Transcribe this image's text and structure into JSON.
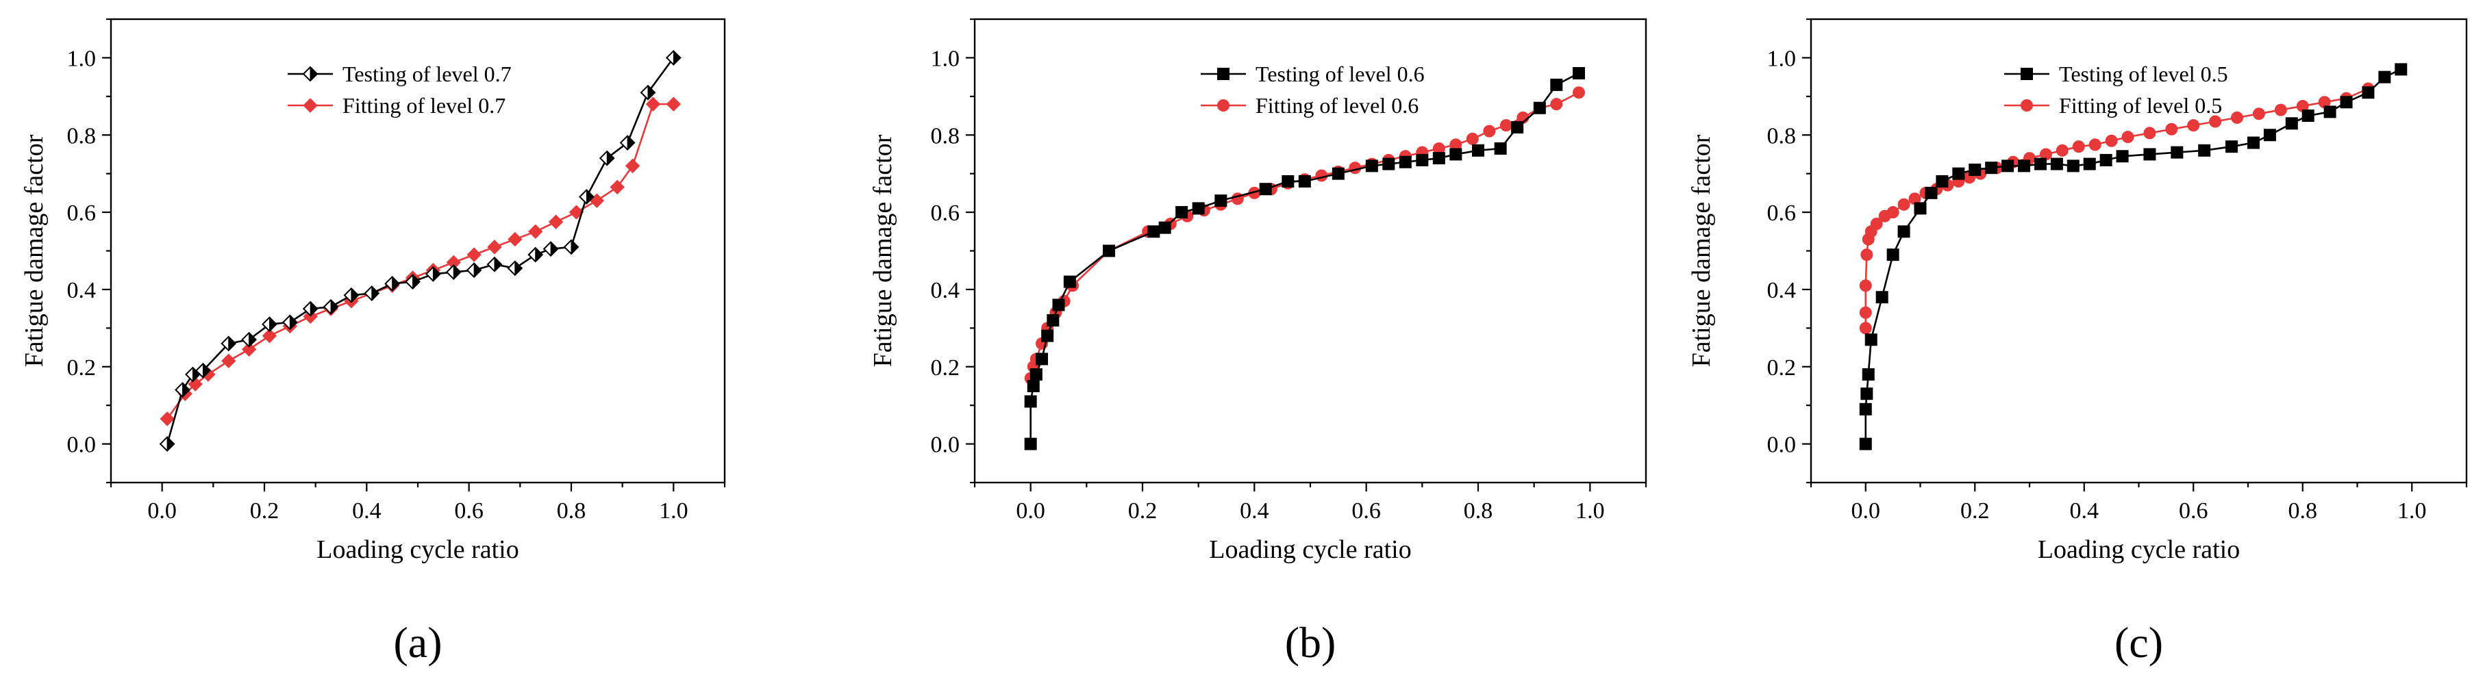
{
  "chart_data": [
    {
      "type": "line",
      "xlabel": "Loading cycle ratio",
      "ylabel": "Fatigue damage factor",
      "xlim": [
        -0.1,
        1.1
      ],
      "ylim": [
        -0.1,
        1.1
      ],
      "xticks": [
        "0.0",
        "0.2",
        "0.4",
        "0.6",
        "0.8",
        "1.0"
      ],
      "yticks": [
        "0.0",
        "0.2",
        "0.4",
        "0.6",
        "0.8",
        "1.0"
      ],
      "caption": "(a)",
      "legend_position": "top-center",
      "series": [
        {
          "name": "Testing of level 0.7",
          "color": "#000000",
          "marker": "half-diamond",
          "x": [
            0.01,
            0.04,
            0.06,
            0.08,
            0.13,
            0.17,
            0.21,
            0.25,
            0.29,
            0.33,
            0.37,
            0.41,
            0.45,
            0.49,
            0.53,
            0.57,
            0.61,
            0.65,
            0.69,
            0.73,
            0.76,
            0.8,
            0.83,
            0.87,
            0.91,
            0.95,
            1.0
          ],
          "y": [
            0.0,
            0.14,
            0.18,
            0.19,
            0.26,
            0.27,
            0.31,
            0.315,
            0.35,
            0.355,
            0.385,
            0.39,
            0.415,
            0.42,
            0.44,
            0.445,
            0.45,
            0.465,
            0.455,
            0.49,
            0.505,
            0.51,
            0.64,
            0.74,
            0.78,
            0.91,
            1.0
          ]
        },
        {
          "name": "Fitting of level 0.7",
          "color": "#e8393a",
          "marker": "diamond",
          "x": [
            0.01,
            0.045,
            0.065,
            0.09,
            0.13,
            0.17,
            0.21,
            0.25,
            0.29,
            0.33,
            0.37,
            0.41,
            0.45,
            0.49,
            0.53,
            0.57,
            0.61,
            0.65,
            0.69,
            0.73,
            0.77,
            0.81,
            0.85,
            0.89,
            0.92,
            0.96,
            1.0
          ],
          "y": [
            0.065,
            0.13,
            0.155,
            0.18,
            0.215,
            0.245,
            0.28,
            0.305,
            0.33,
            0.35,
            0.37,
            0.39,
            0.41,
            0.43,
            0.45,
            0.47,
            0.49,
            0.51,
            0.53,
            0.55,
            0.575,
            0.6,
            0.63,
            0.665,
            0.72,
            0.88,
            0.88
          ]
        }
      ]
    },
    {
      "type": "line",
      "xlabel": "Loading cycle ratio",
      "ylabel": "Fatigue damage factor",
      "xlim": [
        -0.1,
        1.1
      ],
      "ylim": [
        -0.1,
        1.1
      ],
      "xticks": [
        "0.0",
        "0.2",
        "0.4",
        "0.6",
        "0.8",
        "1.0"
      ],
      "yticks": [
        "0.0",
        "0.2",
        "0.4",
        "0.6",
        "0.8",
        "1.0"
      ],
      "caption": "(b)",
      "legend_position": "top-center",
      "series": [
        {
          "name": "Testing of level 0.6",
          "color": "#000000",
          "marker": "square",
          "x": [
            0.0,
            0.0,
            0.005,
            0.01,
            0.02,
            0.03,
            0.04,
            0.05,
            0.07,
            0.14,
            0.22,
            0.24,
            0.27,
            0.3,
            0.34,
            0.42,
            0.46,
            0.49,
            0.55,
            0.61,
            0.64,
            0.67,
            0.7,
            0.73,
            0.76,
            0.8,
            0.84,
            0.87,
            0.91,
            0.94,
            0.98
          ],
          "y": [
            0.0,
            0.11,
            0.15,
            0.18,
            0.22,
            0.28,
            0.32,
            0.36,
            0.42,
            0.5,
            0.55,
            0.56,
            0.6,
            0.61,
            0.63,
            0.66,
            0.68,
            0.68,
            0.7,
            0.72,
            0.725,
            0.73,
            0.735,
            0.74,
            0.75,
            0.76,
            0.765,
            0.82,
            0.87,
            0.93,
            0.96
          ]
        },
        {
          "name": "Fitting of level 0.6",
          "color": "#e8393a",
          "marker": "circle",
          "x": [
            0.0,
            0.005,
            0.01,
            0.02,
            0.03,
            0.045,
            0.06,
            0.075,
            0.14,
            0.21,
            0.25,
            0.28,
            0.31,
            0.34,
            0.37,
            0.4,
            0.43,
            0.46,
            0.49,
            0.52,
            0.55,
            0.58,
            0.61,
            0.64,
            0.67,
            0.7,
            0.73,
            0.76,
            0.79,
            0.82,
            0.85,
            0.88,
            0.91,
            0.94,
            0.98
          ],
          "y": [
            0.17,
            0.2,
            0.22,
            0.26,
            0.3,
            0.34,
            0.37,
            0.41,
            0.5,
            0.55,
            0.57,
            0.59,
            0.605,
            0.62,
            0.635,
            0.65,
            0.66,
            0.675,
            0.685,
            0.695,
            0.705,
            0.715,
            0.725,
            0.735,
            0.745,
            0.755,
            0.765,
            0.775,
            0.79,
            0.81,
            0.825,
            0.845,
            0.87,
            0.88,
            0.91
          ]
        }
      ]
    },
    {
      "type": "line",
      "xlabel": "Loading cycle ratio",
      "ylabel": "Fatigue damage factor",
      "xlim": [
        -0.1,
        1.1
      ],
      "ylim": [
        -0.1,
        1.1
      ],
      "xticks": [
        "0.0",
        "0.2",
        "0.4",
        "0.6",
        "0.8",
        "1.0"
      ],
      "yticks": [
        "0.0",
        "0.2",
        "0.4",
        "0.6",
        "0.8",
        "1.0"
      ],
      "caption": "(c)",
      "legend_position": "top-center",
      "series": [
        {
          "name": "Testing of level 0.5",
          "color": "#000000",
          "marker": "square",
          "x": [
            0.0,
            0.0,
            0.002,
            0.005,
            0.01,
            0.03,
            0.05,
            0.07,
            0.1,
            0.12,
            0.14,
            0.17,
            0.2,
            0.23,
            0.26,
            0.29,
            0.32,
            0.35,
            0.38,
            0.41,
            0.44,
            0.47,
            0.52,
            0.57,
            0.62,
            0.67,
            0.71,
            0.74,
            0.78,
            0.81,
            0.85,
            0.88,
            0.92,
            0.95,
            0.98
          ],
          "y": [
            0.0,
            0.09,
            0.13,
            0.18,
            0.27,
            0.38,
            0.49,
            0.55,
            0.61,
            0.65,
            0.68,
            0.7,
            0.71,
            0.715,
            0.72,
            0.72,
            0.725,
            0.725,
            0.72,
            0.725,
            0.735,
            0.745,
            0.75,
            0.755,
            0.76,
            0.77,
            0.78,
            0.8,
            0.83,
            0.85,
            0.86,
            0.885,
            0.91,
            0.95,
            0.97
          ]
        },
        {
          "name": "Fitting of level 0.5",
          "color": "#e8393a",
          "marker": "circle",
          "x": [
            0.0,
            0.0,
            0.0,
            0.002,
            0.005,
            0.01,
            0.02,
            0.035,
            0.05,
            0.07,
            0.09,
            0.11,
            0.13,
            0.15,
            0.17,
            0.19,
            0.21,
            0.24,
            0.27,
            0.3,
            0.33,
            0.36,
            0.39,
            0.42,
            0.45,
            0.48,
            0.52,
            0.56,
            0.6,
            0.64,
            0.68,
            0.72,
            0.76,
            0.8,
            0.84,
            0.88,
            0.92
          ],
          "y": [
            0.3,
            0.34,
            0.41,
            0.49,
            0.53,
            0.55,
            0.57,
            0.59,
            0.6,
            0.62,
            0.635,
            0.65,
            0.66,
            0.67,
            0.68,
            0.69,
            0.7,
            0.715,
            0.73,
            0.74,
            0.75,
            0.76,
            0.77,
            0.775,
            0.785,
            0.795,
            0.805,
            0.815,
            0.825,
            0.835,
            0.845,
            0.855,
            0.865,
            0.875,
            0.885,
            0.895,
            0.92
          ]
        }
      ]
    }
  ]
}
